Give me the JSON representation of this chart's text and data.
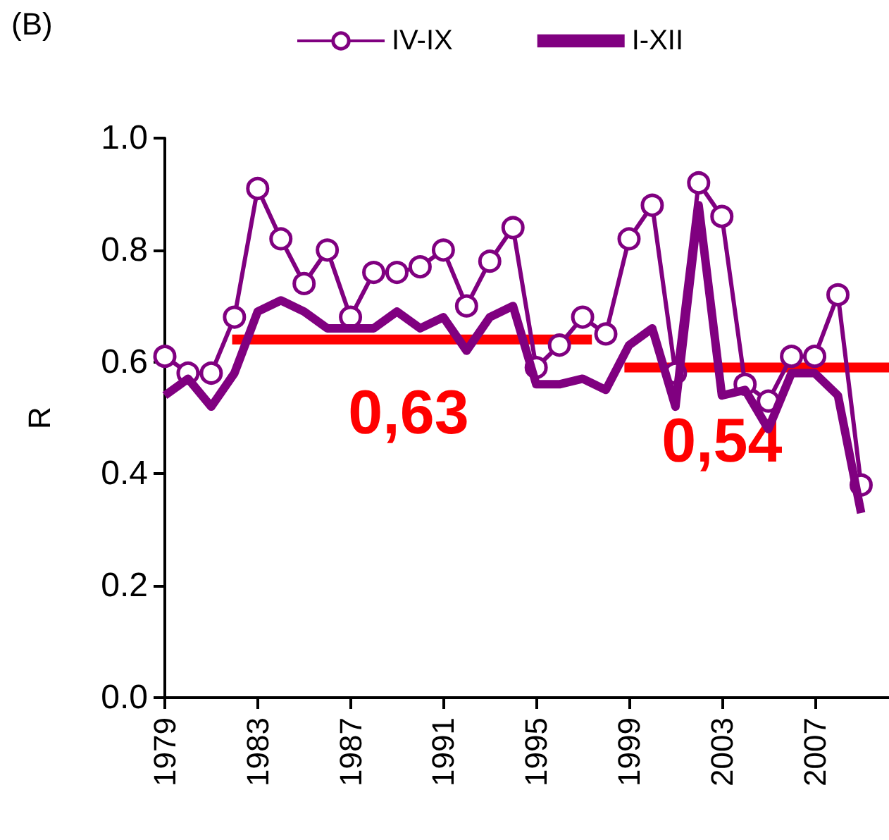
{
  "chart_data": {
    "type": "line",
    "ylabel": "R",
    "annotations": [
      "(B)",
      {
        "text": "0,63",
        "x": 1989.5,
        "y": 0.64
      },
      {
        "text": "0,54",
        "x": 2003,
        "y": 0.59
      }
    ],
    "x": [
      1979,
      1980,
      1981,
      1982,
      1983,
      1984,
      1985,
      1986,
      1987,
      1988,
      1989,
      1990,
      1991,
      1992,
      1993,
      1994,
      1995,
      1996,
      1997,
      1998,
      1999,
      2000,
      2001,
      2002,
      2003,
      2004,
      2005,
      2006,
      2007,
      2008,
      2009
    ],
    "series": [
      {
        "name": "IV-IX",
        "color": "#800080",
        "marker": "circle",
        "values": [
          0.61,
          0.58,
          0.58,
          0.68,
          0.91,
          0.82,
          0.74,
          0.8,
          0.68,
          0.76,
          0.76,
          0.77,
          0.8,
          0.7,
          0.78,
          0.84,
          0.59,
          0.63,
          0.68,
          0.65,
          0.82,
          0.88,
          0.58,
          0.92,
          0.86,
          0.56,
          0.53,
          0.61,
          0.61,
          0.72,
          0.38
        ]
      },
      {
        "name": "I-XII",
        "color": "#800080",
        "marker": "none",
        "values": [
          0.54,
          0.57,
          0.52,
          0.58,
          0.69,
          0.71,
          0.69,
          0.66,
          0.66,
          0.66,
          0.69,
          0.66,
          0.68,
          0.62,
          0.68,
          0.7,
          0.56,
          0.56,
          0.57,
          0.55,
          0.63,
          0.66,
          0.52,
          0.88,
          0.54,
          0.55,
          0.48,
          0.58,
          0.58,
          0.54,
          0.33
        ]
      },
      {
        "type": "line",
        "color": "#ff0000",
        "marker": "none",
        "x": [
          1981.9,
          1997.4
        ],
        "values": [
          0.64,
          0.64
        ]
      },
      {
        "type": "line",
        "color": "#ff0000",
        "marker": "none",
        "x": [
          1998.8,
          2010.2
        ],
        "values": [
          0.59,
          0.59
        ]
      }
    ],
    "xlim": [
      1979,
      2010.2
    ],
    "xticks": [
      1979,
      1983,
      1987,
      1991,
      1995,
      1999,
      2003,
      2007
    ],
    "ylim": [
      0,
      1
    ],
    "yticks": [
      {
        "value": 0,
        "label": "0.0"
      },
      {
        "value": 0.2,
        "label": "0.2"
      },
      {
        "value": 0.4,
        "label": "0.4"
      },
      {
        "value": 0.6,
        "label": "0.6"
      },
      {
        "value": 0.8,
        "label": "0.8"
      },
      {
        "value": 1,
        "label": "1.0"
      }
    ],
    "grid": false,
    "legend": "top"
  }
}
